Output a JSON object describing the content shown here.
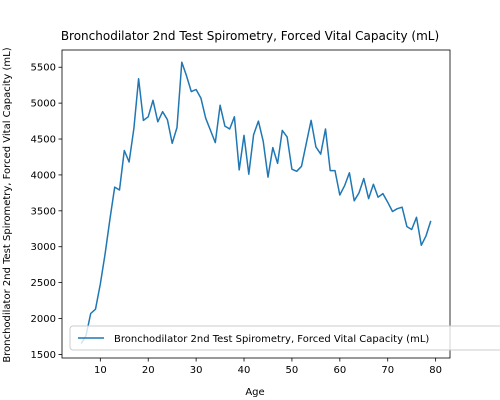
{
  "chart_data": {
    "type": "line",
    "title": "Bronchodilator 2nd Test Spirometry, Forced Vital Capacity (mL)",
    "xlabel": "Age",
    "ylabel": "Bronchodilator 2nd Test Spirometry, Forced Vital Capacity (mL)",
    "xlim": [
      2,
      83
    ],
    "ylim": [
      1450,
      5740
    ],
    "xticks": [
      10,
      20,
      30,
      40,
      50,
      60,
      70,
      80
    ],
    "yticks": [
      1500,
      2000,
      2500,
      3000,
      3500,
      4000,
      4500,
      5000,
      5500
    ],
    "grid": false,
    "legend_position": "lower-left",
    "series": [
      {
        "name": "Bronchodilator 2nd Test Spirometry, Forced Vital Capacity (mL)",
        "color": "#1f77b4",
        "x": [
          6,
          7,
          8,
          9,
          10,
          11,
          12,
          13,
          14,
          15,
          16,
          17,
          18,
          19,
          20,
          21,
          22,
          23,
          24,
          25,
          26,
          27,
          28,
          29,
          30,
          31,
          32,
          33,
          34,
          35,
          36,
          37,
          38,
          39,
          40,
          41,
          42,
          43,
          44,
          45,
          46,
          47,
          48,
          49,
          50,
          51,
          52,
          53,
          54,
          55,
          56,
          57,
          58,
          59,
          60,
          61,
          62,
          63,
          64,
          65,
          66,
          67,
          68,
          69,
          70,
          71,
          72,
          73,
          74,
          75,
          76,
          77,
          78,
          79
        ],
        "values": [
          1650,
          1760,
          2070,
          2130,
          2480,
          2900,
          3380,
          3830,
          3790,
          4340,
          4180,
          4650,
          5340,
          4760,
          4810,
          5040,
          4740,
          4880,
          4770,
          4440,
          4660,
          5570,
          5380,
          5160,
          5190,
          5070,
          4790,
          4620,
          4450,
          4970,
          4680,
          4640,
          4810,
          4070,
          4550,
          4010,
          4560,
          4750,
          4470,
          3970,
          4380,
          4160,
          4620,
          4530,
          4080,
          4050,
          4120,
          4440,
          4760,
          4390,
          4290,
          4640,
          4060,
          4060,
          3720,
          3850,
          4030,
          3640,
          3750,
          3950,
          3670,
          3870,
          3690,
          3740,
          3620,
          3490,
          3530,
          3550,
          3280,
          3240,
          3410,
          3020,
          3150,
          3360
        ]
      }
    ]
  }
}
